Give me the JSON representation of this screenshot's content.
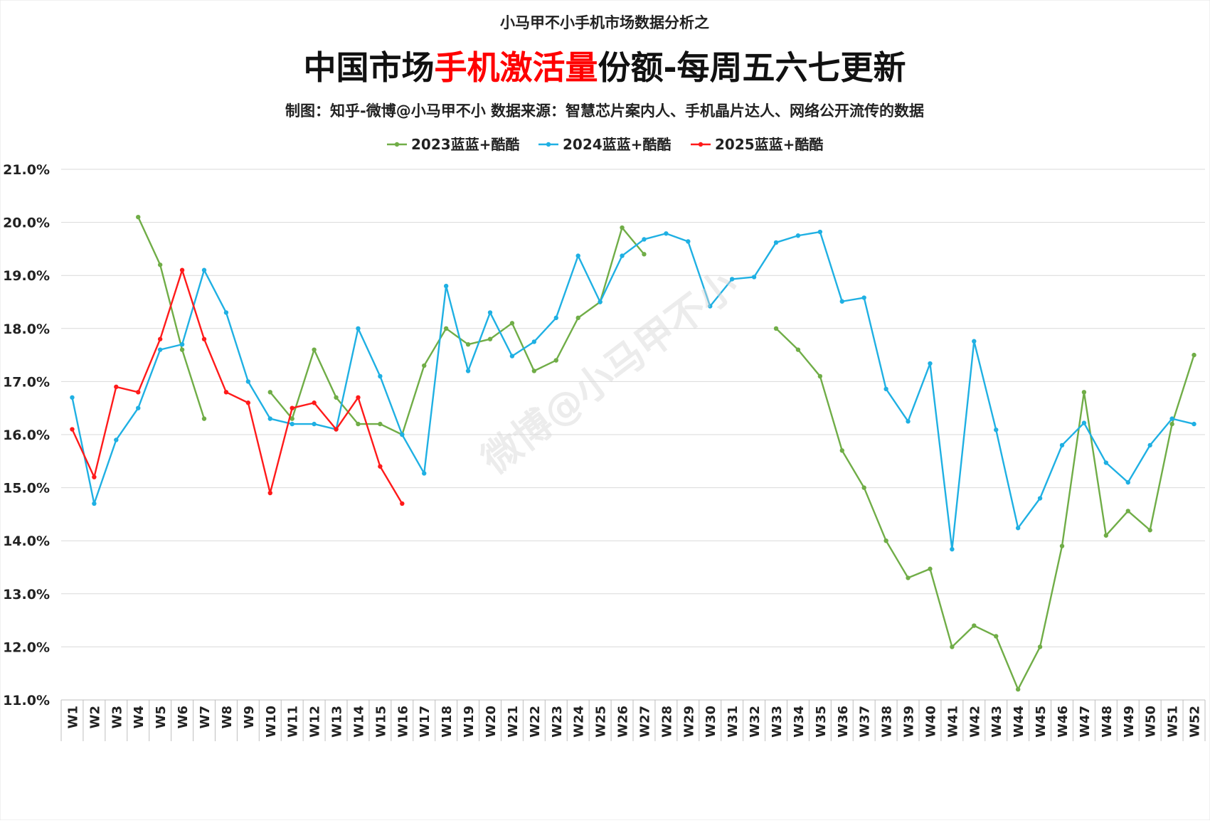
{
  "header": {
    "subtitle": "小马甲不小手机市场数据分析之",
    "title_part1": "中国市场",
    "title_highlight": "手机激活量",
    "title_part2": "份额-每周五六七更新",
    "credit": "制图：知乎-微博@小马甲不小  数据来源：智慧芯片案内人、手机晶片达人、网络公开流传的数据"
  },
  "watermark": "微博@小马甲不小",
  "colors": {
    "highlight": "#ff0000",
    "grid": "#d9d9d9",
    "axis": "#bfbfbf",
    "series_2023": "#70ad47",
    "series_2024": "#1fb0e3",
    "series_2025": "#ff1a1a"
  },
  "chart_data": {
    "type": "line",
    "title": "中国市场手机激活量份额-每周五六七更新",
    "ylim": [
      11.0,
      21.0
    ],
    "yticks": [
      "11.0%",
      "12.0%",
      "13.0%",
      "14.0%",
      "15.0%",
      "16.0%",
      "17.0%",
      "18.0%",
      "19.0%",
      "20.0%",
      "21.0%"
    ],
    "grid": true,
    "legend": "top-center",
    "categories": [
      "W1",
      "W2",
      "W3",
      "W4",
      "W5",
      "W6",
      "W7",
      "W8",
      "W9",
      "W10",
      "W11",
      "W12",
      "W13",
      "W14",
      "W15",
      "W16",
      "W17",
      "W18",
      "W19",
      "W20",
      "W21",
      "W22",
      "W23",
      "W24",
      "W25",
      "W26",
      "W27",
      "W28",
      "W29",
      "W30",
      "W31",
      "W32",
      "W33",
      "W34",
      "W35",
      "W36",
      "W37",
      "W38",
      "W39",
      "W40",
      "W41",
      "W42",
      "W43",
      "W44",
      "W45",
      "W46",
      "W47",
      "W48",
      "W49",
      "W50",
      "W51",
      "W52"
    ],
    "series": [
      {
        "name": "2023蓝蓝+酷酷",
        "color": "#70ad47",
        "values": [
          null,
          null,
          null,
          20.1,
          19.2,
          17.6,
          16.3,
          null,
          null,
          16.8,
          16.3,
          17.6,
          16.7,
          16.2,
          16.2,
          16.0,
          17.3,
          18.0,
          17.7,
          17.8,
          18.1,
          17.2,
          17.4,
          18.2,
          18.5,
          19.9,
          19.4,
          null,
          null,
          null,
          null,
          null,
          18.0,
          17.6,
          17.1,
          15.7,
          15.0,
          14.0,
          13.3,
          13.47,
          12.0,
          12.4,
          12.2,
          11.2,
          12.0,
          13.9,
          16.8,
          14.1,
          14.56,
          14.2,
          16.2,
          17.5
        ]
      },
      {
        "name": "2024蓝蓝+酷酷",
        "color": "#1fb0e3",
        "values": [
          16.7,
          14.7,
          15.9,
          16.5,
          17.6,
          17.7,
          19.1,
          18.3,
          17.0,
          16.3,
          16.2,
          16.2,
          16.1,
          18.0,
          17.1,
          16.0,
          15.27,
          18.8,
          17.2,
          18.3,
          17.48,
          17.75,
          18.2,
          19.37,
          18.5,
          19.37,
          19.68,
          19.79,
          19.64,
          18.42,
          18.93,
          18.97,
          19.62,
          19.75,
          19.82,
          18.51,
          18.58,
          16.86,
          16.25,
          17.34,
          13.84,
          17.76,
          16.09,
          14.24,
          14.8,
          15.8,
          16.22,
          15.47,
          15.1,
          15.8,
          16.3,
          16.2
        ]
      },
      {
        "name": "2025蓝蓝+酷酷",
        "color": "#ff1a1a",
        "values": [
          16.1,
          15.2,
          16.9,
          16.8,
          17.8,
          19.1,
          17.8,
          16.8,
          16.6,
          14.9,
          16.5,
          16.6,
          16.1,
          16.7,
          15.4,
          14.7,
          null,
          null,
          null,
          null,
          null,
          null,
          null,
          null,
          null,
          null,
          null,
          null,
          null,
          null,
          null,
          null,
          null,
          null,
          null,
          null,
          null,
          null,
          null,
          null,
          null,
          null,
          null,
          null,
          null,
          null,
          null,
          null,
          null,
          null,
          null,
          null
        ]
      }
    ]
  }
}
